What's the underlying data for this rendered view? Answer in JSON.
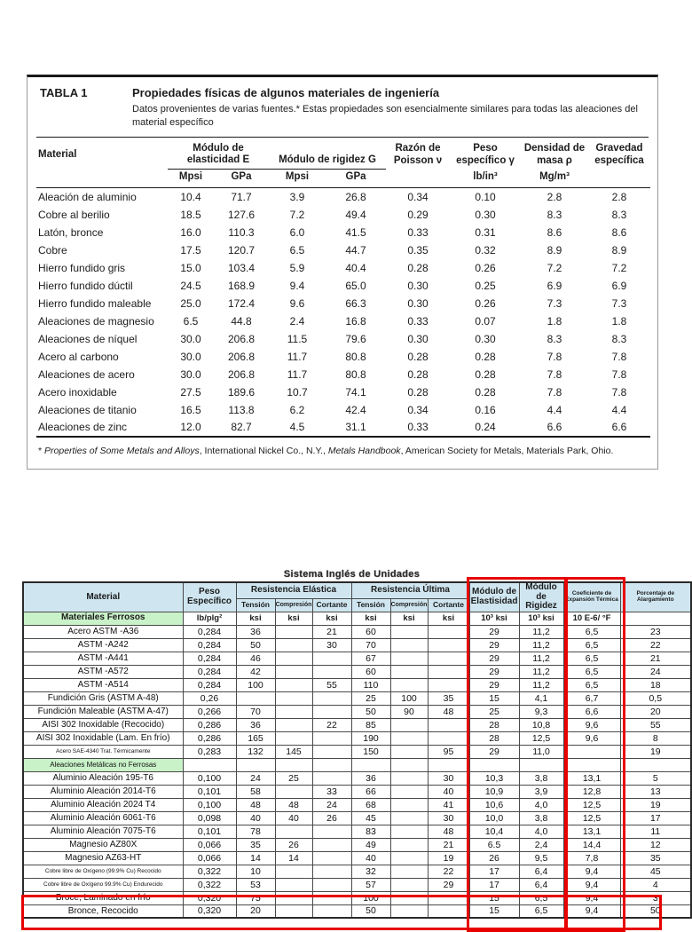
{
  "colors": {
    "highlight_red": "#e80000",
    "table2_header_bg": "#cfe6f0",
    "section_green": "#c9f2c9"
  },
  "table1": {
    "label": "TABLA 1",
    "title": "Propiedades físicas de algunos materiales de ingeniería",
    "subtitle": "Datos provenientes de varias fuentes.* Estas propiedades son esencialmente similares para todas las aleaciones del material específico",
    "headers": {
      "material": "Material",
      "elasticity": "Módulo de elasticidad E",
      "rigidity": "Módulo de rigidez G",
      "poisson": "Razón de Poisson ν",
      "weight": "Peso específico γ",
      "density": "Densidad de masa ρ",
      "gravity": "Gravedad específica"
    },
    "units": [
      "Mpsi",
      "GPa",
      "Mpsi",
      "GPa",
      "lb/in³",
      "Mg/m³"
    ],
    "rows": [
      {
        "material": "Aleación de aluminio",
        "values": [
          "10.4",
          "71.7",
          "3.9",
          "26.8",
          "0.34",
          "0.10",
          "2.8",
          "2.8"
        ]
      },
      {
        "material": "Cobre al berilio",
        "values": [
          "18.5",
          "127.6",
          "7.2",
          "49.4",
          "0.29",
          "0.30",
          "8.3",
          "8.3"
        ]
      },
      {
        "material": "Latón, bronce",
        "values": [
          "16.0",
          "110.3",
          "6.0",
          "41.5",
          "0.33",
          "0.31",
          "8.6",
          "8.6"
        ]
      },
      {
        "material": "Cobre",
        "values": [
          "17.5",
          "120.7",
          "6.5",
          "44.7",
          "0.35",
          "0.32",
          "8.9",
          "8.9"
        ]
      },
      {
        "material": "Hierro fundido gris",
        "values": [
          "15.0",
          "103.4",
          "5.9",
          "40.4",
          "0.28",
          "0.26",
          "7.2",
          "7.2"
        ]
      },
      {
        "material": "Hierro fundido dúctil",
        "values": [
          "24.5",
          "168.9",
          "9.4",
          "65.0",
          "0.30",
          "0.25",
          "6.9",
          "6.9"
        ]
      },
      {
        "material": "Hierro fundido maleable",
        "values": [
          "25.0",
          "172.4",
          "9.6",
          "66.3",
          "0.30",
          "0.26",
          "7.3",
          "7.3"
        ]
      },
      {
        "material": "Aleaciones de magnesio",
        "values": [
          "6.5",
          "44.8",
          "2.4",
          "16.8",
          "0.33",
          "0.07",
          "1.8",
          "1.8"
        ]
      },
      {
        "material": "Aleaciones de níquel",
        "values": [
          "30.0",
          "206.8",
          "11.5",
          "79.6",
          "0.30",
          "0.30",
          "8.3",
          "8.3"
        ]
      },
      {
        "material": "Acero al carbono",
        "values": [
          "30.0",
          "206.8",
          "11.7",
          "80.8",
          "0.28",
          "0.28",
          "7.8",
          "7.8"
        ]
      },
      {
        "material": "Aleaciones de acero",
        "values": [
          "30.0",
          "206.8",
          "11.7",
          "80.8",
          "0.28",
          "0.28",
          "7.8",
          "7.8"
        ]
      },
      {
        "material": "Acero inoxidable",
        "values": [
          "27.5",
          "189.6",
          "10.7",
          "74.1",
          "0.28",
          "0.28",
          "7.8",
          "7.8"
        ]
      },
      {
        "material": "Aleaciones de titanio",
        "values": [
          "16.5",
          "113.8",
          "6.2",
          "42.4",
          "0.34",
          "0.16",
          "4.4",
          "4.4"
        ]
      },
      {
        "material": "Aleaciones de zinc",
        "values": [
          "12.0",
          "82.7",
          "4.5",
          "31.1",
          "0.33",
          "0.24",
          "6.6",
          "6.6"
        ]
      }
    ],
    "footnote": {
      "prefix": "* ",
      "italic1": "Properties of Some Metals and Alloys",
      "mid": ", International Nickel Co., N.Y., ",
      "italic2": "Metals Handbook",
      "suffix": ", American Society for Metals, Materials Park, Ohio."
    }
  },
  "table2": {
    "title": "Sistema Inglés de Unidades",
    "headers": {
      "material": "Material",
      "peso": "Peso Específico",
      "elastica": "Resistencia Elástica",
      "ultima": "Resistencia Última",
      "mod_e": "Módulo de Elastisidad",
      "mod_g": "Módulo de Rigidez",
      "coef": "Coeficiente de Expansión Térmica",
      "porc": "Porcentaje de Alargamiento"
    },
    "subheaders": [
      "Tensión",
      "Compresión",
      "Cortante",
      "Tensión",
      "Compresión",
      "Cortante"
    ],
    "section_ferrosos": "Materiales Ferrosos",
    "units": [
      "lb/plg²",
      "ksi",
      "ksi",
      "ksi",
      "ksi",
      "ksi",
      "ksi",
      "10³ ksi",
      "10³ ksi",
      "10 E-6/ °F",
      ""
    ],
    "rows": [
      {
        "material": "Acero ASTM -A36",
        "values": [
          "0,284",
          "36",
          "",
          "21",
          "60",
          "",
          "",
          "29",
          "11,2",
          "6,5",
          "23"
        ]
      },
      {
        "material": "ASTM -A242",
        "values": [
          "0,284",
          "50",
          "",
          "30",
          "70",
          "",
          "",
          "29",
          "11,2",
          "6,5",
          "22"
        ]
      },
      {
        "material": "ASTM -A441",
        "values": [
          "0,284",
          "46",
          "",
          "",
          "67",
          "",
          "",
          "29",
          "11,2",
          "6,5",
          "21"
        ]
      },
      {
        "material": "ASTM -A572",
        "values": [
          "0,284",
          "42",
          "",
          "",
          "60",
          "",
          "",
          "29",
          "11,2",
          "6,5",
          "24"
        ]
      },
      {
        "material": "ASTM -A514",
        "values": [
          "0,284",
          "100",
          "",
          "55",
          "110",
          "",
          "",
          "29",
          "11,2",
          "6,5",
          "18"
        ]
      },
      {
        "material": "Fundición Gris (ASTM A-48)",
        "values": [
          "0,26",
          "",
          "",
          "",
          "25",
          "100",
          "35",
          "15",
          "4,1",
          "6,7",
          "0,5"
        ]
      },
      {
        "material": "Fundición Maleable (ASTM A-47)",
        "values": [
          "0,266",
          "70",
          "",
          "",
          "50",
          "90",
          "48",
          "25",
          "9,3",
          "6,6",
          "20"
        ]
      },
      {
        "material": "AISI 302 Inoxidable (Recocido)",
        "values": [
          "0,286",
          "36",
          "",
          "22",
          "85",
          "",
          "",
          "28",
          "10,8",
          "9,6",
          "55"
        ]
      },
      {
        "material": "AISI 302 Inoxidable (Lam. En frío)",
        "values": [
          "0,286",
          "165",
          "",
          "",
          "190",
          "",
          "",
          "28",
          "12,5",
          "9,6",
          "8"
        ]
      },
      {
        "material": "Acero SAE-4340 Trat. Térmicamente",
        "small": true,
        "values": [
          "0,283",
          "132",
          "145",
          "",
          "150",
          "",
          "95",
          "29",
          "11,0",
          "",
          "19"
        ]
      },
      {
        "material": "Aleaciones Metálicas no Ferrosas",
        "section": true,
        "values": []
      },
      {
        "material": "Aluminio Aleación 195-T6",
        "values": [
          "0,100",
          "24",
          "25",
          "",
          "36",
          "",
          "30",
          "10,3",
          "3,8",
          "13,1",
          "5"
        ]
      },
      {
        "material": "Aluminio Aleación 2014-T6",
        "values": [
          "0,101",
          "58",
          "",
          "33",
          "66",
          "",
          "40",
          "10,9",
          "3,9",
          "12,8",
          "13"
        ]
      },
      {
        "material": "Aluminio Aleación 2024 T4",
        "values": [
          "0,100",
          "48",
          "48",
          "24",
          "68",
          "",
          "41",
          "10,6",
          "4,0",
          "12,5",
          "19"
        ]
      },
      {
        "material": "Aluminio Aleación 6061-T6",
        "values": [
          "0,098",
          "40",
          "40",
          "26",
          "45",
          "",
          "30",
          "10,0",
          "3,8",
          "12,5",
          "17"
        ]
      },
      {
        "material": "Aluminio Aleación 7075-T6",
        "values": [
          "0,101",
          "78",
          "",
          "",
          "83",
          "",
          "48",
          "10,4",
          "4,0",
          "13,1",
          "11"
        ]
      },
      {
        "material": "Magnesio AZ80X",
        "values": [
          "0,066",
          "35",
          "26",
          "",
          "49",
          "",
          "21",
          "6.5",
          "2,4",
          "14,4",
          "12"
        ]
      },
      {
        "material": "Magnesio AZ63-HT",
        "values": [
          "0,066",
          "14",
          "14",
          "",
          "40",
          "",
          "19",
          "26",
          "9,5",
          "7,8",
          "35"
        ]
      },
      {
        "material": "Cobre libre de Oxígeno (99.9% Cu) Recocido",
        "small": true,
        "values": [
          "0,322",
          "10",
          "",
          "",
          "32",
          "",
          "22",
          "17",
          "6,4",
          "9,4",
          "45"
        ]
      },
      {
        "material": "Cobre libre de Oxígeno 99.9% Cu) Endurecido",
        "small": true,
        "values": [
          "0,322",
          "53",
          "",
          "",
          "57",
          "",
          "29",
          "17",
          "6,4",
          "9,4",
          "4"
        ]
      },
      {
        "material": "Broce, Laminado en frío",
        "values": [
          "0,320",
          "75",
          "",
          "",
          "100",
          "",
          "",
          "15",
          "6,5",
          "9,4",
          "3"
        ]
      },
      {
        "material": "Bronce, Recocido",
        "values": [
          "0,320",
          "20",
          "",
          "",
          "50",
          "",
          "",
          "15",
          "6,5",
          "9,4",
          "50"
        ]
      }
    ]
  }
}
